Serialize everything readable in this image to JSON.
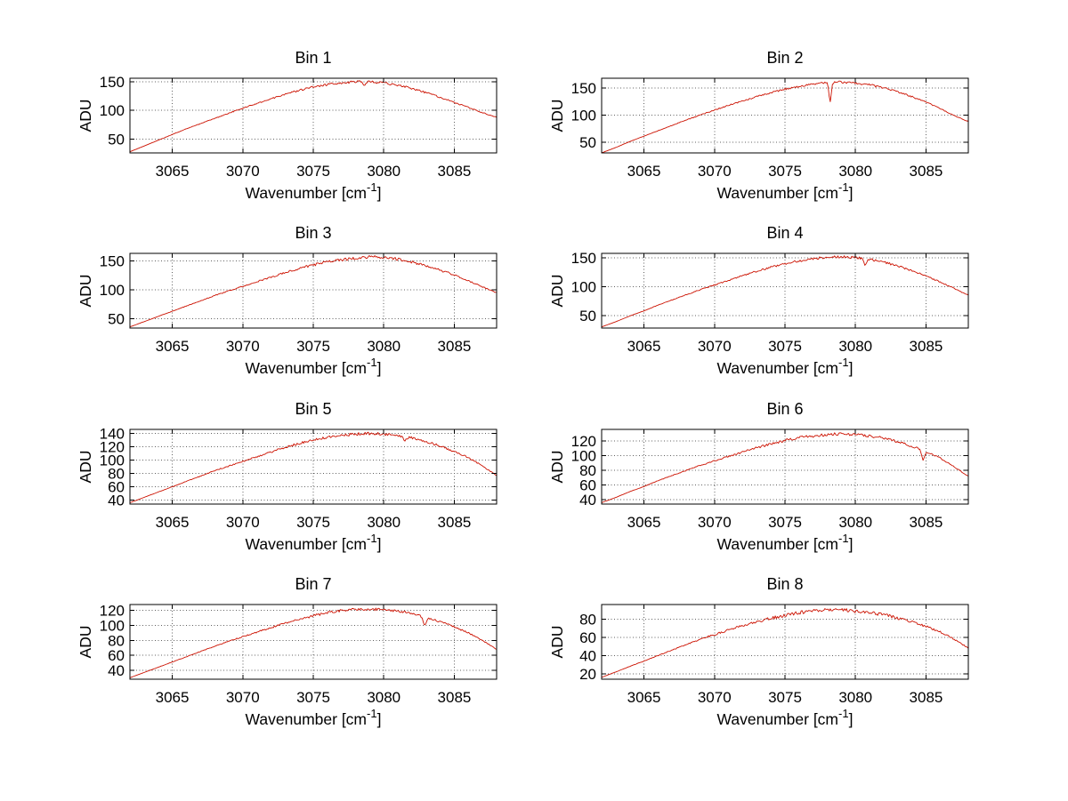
{
  "figure": {
    "background": "#ffffff",
    "line_color": "#cc1100",
    "grid_color": "#606060",
    "axis_color": "#000000"
  },
  "xlabel": {
    "prefix": "Wavenumber [cm",
    "sup": "-1",
    "suffix": "]"
  },
  "ylabel": "ADU",
  "x_axis": {
    "min": 3062,
    "max": 3088,
    "ticks": [
      3065,
      3070,
      3075,
      3080,
      3085
    ]
  },
  "chart_data": [
    {
      "type": "line",
      "title": "Bin 1",
      "xlabel": "Wavenumber [cm^-1]",
      "ylabel": "ADU",
      "x_start": 3062,
      "x_step": 1,
      "ylim": [
        26,
        156
      ],
      "yticks": [
        50,
        100,
        150
      ],
      "noise": 2.2,
      "values": [
        28,
        38,
        48,
        58,
        68,
        77,
        86,
        95,
        104,
        112,
        120,
        128,
        135,
        141,
        145,
        148,
        150,
        150,
        148,
        144,
        138,
        131,
        123,
        114,
        105,
        96,
        88
      ],
      "dips": [
        {
          "x": 3078.6,
          "depth": 6,
          "w": 0.15
        }
      ]
    },
    {
      "type": "line",
      "title": "Bin 2",
      "xlabel": "Wavenumber [cm^-1]",
      "ylabel": "ADU",
      "x_start": 3062,
      "x_step": 1,
      "ylim": [
        30,
        168
      ],
      "yticks": [
        50,
        100,
        150
      ],
      "noise": 2.2,
      "values": [
        30,
        40,
        51,
        61,
        71,
        81,
        91,
        100,
        109,
        118,
        126,
        134,
        141,
        148,
        153,
        157,
        160,
        161,
        159,
        156,
        150,
        143,
        134,
        124,
        112,
        99,
        88
      ],
      "dips": [
        {
          "x": 3078.2,
          "depth": 36,
          "w": 0.12
        }
      ]
    },
    {
      "type": "line",
      "title": "Bin 3",
      "xlabel": "Wavenumber [cm^-1]",
      "ylabel": "ADU",
      "x_start": 3062,
      "x_step": 1,
      "ylim": [
        34,
        163
      ],
      "yticks": [
        50,
        100,
        150
      ],
      "noise": 2.8,
      "values": [
        36,
        45,
        54,
        63,
        72,
        81,
        90,
        98,
        106,
        114,
        122,
        130,
        137,
        143,
        148,
        152,
        155,
        157,
        156,
        153,
        148,
        142,
        134,
        126,
        116,
        105,
        95
      ],
      "dips": []
    },
    {
      "type": "line",
      "title": "Bin 4",
      "xlabel": "Wavenumber [cm^-1]",
      "ylabel": "ADU",
      "x_start": 3062,
      "x_step": 1,
      "ylim": [
        28,
        158
      ],
      "yticks": [
        50,
        100,
        150
      ],
      "noise": 2.4,
      "values": [
        30,
        39,
        49,
        58,
        68,
        77,
        86,
        95,
        103,
        111,
        119,
        127,
        134,
        140,
        145,
        149,
        151,
        152,
        151,
        148,
        143,
        136,
        128,
        119,
        108,
        97,
        85
      ],
      "dips": [
        {
          "x": 3080.7,
          "depth": 11,
          "w": 0.15
        }
      ]
    },
    {
      "type": "line",
      "title": "Bin 5",
      "xlabel": "Wavenumber [cm^-1]",
      "ylabel": "ADU",
      "x_start": 3062,
      "x_step": 1,
      "ylim": [
        34,
        146
      ],
      "yticks": [
        40,
        60,
        80,
        100,
        120,
        140
      ],
      "noise": 2.4,
      "values": [
        36,
        44,
        52,
        60,
        68,
        76,
        84,
        91,
        98,
        105,
        112,
        119,
        125,
        130,
        134,
        137,
        139,
        140,
        139,
        137,
        133,
        128,
        121,
        113,
        104,
        91,
        77
      ],
      "dips": [
        {
          "x": 3081.5,
          "depth": 6,
          "w": 0.15
        }
      ]
    },
    {
      "type": "line",
      "title": "Bin 6",
      "xlabel": "Wavenumber [cm^-1]",
      "ylabel": "ADU",
      "x_start": 3062,
      "x_step": 1,
      "ylim": [
        34,
        136
      ],
      "yticks": [
        40,
        60,
        80,
        100,
        120
      ],
      "noise": 2.2,
      "values": [
        36,
        43,
        51,
        58,
        66,
        73,
        80,
        87,
        93,
        99,
        105,
        111,
        116,
        121,
        125,
        127,
        129,
        130,
        129,
        127,
        124,
        119,
        113,
        106,
        97,
        85,
        72
      ],
      "dips": [
        {
          "x": 3084.8,
          "depth": 13,
          "w": 0.14
        }
      ]
    },
    {
      "type": "line",
      "title": "Bin 7",
      "xlabel": "Wavenumber [cm^-1]",
      "ylabel": "ADU",
      "x_start": 3062,
      "x_step": 1,
      "ylim": [
        28,
        128
      ],
      "yticks": [
        40,
        60,
        80,
        100,
        120
      ],
      "noise": 2.0,
      "values": [
        30,
        37,
        44,
        51,
        58,
        65,
        72,
        79,
        85,
        91,
        97,
        103,
        108,
        113,
        117,
        120,
        122,
        122,
        121,
        119,
        116,
        111,
        105,
        98,
        90,
        80,
        68
      ],
      "dips": [
        {
          "x": 3082.9,
          "depth": 11,
          "w": 0.15
        }
      ]
    },
    {
      "type": "line",
      "title": "Bin 8",
      "xlabel": "Wavenumber [cm^-1]",
      "ylabel": "ADU",
      "x_start": 3062,
      "x_step": 1,
      "ylim": [
        14,
        96
      ],
      "yticks": [
        20,
        40,
        60,
        80
      ],
      "noise": 2.2,
      "values": [
        16,
        22,
        28,
        34,
        40,
        46,
        52,
        58,
        63,
        68,
        73,
        77,
        81,
        84,
        87,
        89,
        90,
        90,
        89,
        87,
        85,
        81,
        77,
        72,
        66,
        58,
        48
      ],
      "dips": []
    }
  ]
}
